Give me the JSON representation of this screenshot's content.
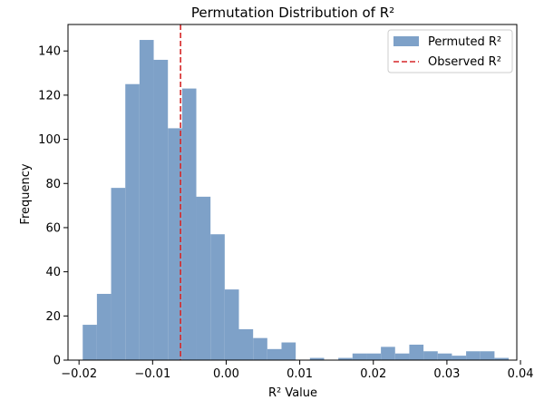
{
  "chart_data": {
    "type": "bar",
    "title": "Permutation Distribution of R²",
    "xlabel": "R² Value",
    "ylabel": "Frequency",
    "xlim": [
      -0.0215,
      0.0395
    ],
    "ylim": [
      0,
      152
    ],
    "x_ticks": [
      -0.02,
      -0.01,
      0.0,
      0.01,
      0.02,
      0.03,
      0.04
    ],
    "x_tick_labels": [
      "−0.02",
      "−0.01",
      "0.00",
      "0.01",
      "0.02",
      "0.03",
      "0.04"
    ],
    "y_ticks": [
      0,
      20,
      40,
      60,
      80,
      100,
      120,
      140
    ],
    "y_tick_labels": [
      "0",
      "20",
      "40",
      "60",
      "80",
      "100",
      "120",
      "140"
    ],
    "bin_start": -0.0195,
    "bin_width": 0.00193,
    "series": [
      {
        "name": "Permuted R²",
        "color": "#7ea1c8",
        "values": [
          16,
          30,
          78,
          125,
          145,
          136,
          105,
          123,
          74,
          57,
          32,
          14,
          10,
          5,
          8,
          0,
          1,
          0,
          1,
          3,
          3,
          6,
          3,
          7,
          4,
          3,
          2,
          4,
          4,
          1
        ]
      }
    ],
    "observed": {
      "name": "Observed R²",
      "value": -0.0062,
      "color": "#d62728"
    },
    "legend_position": "top-right",
    "grid": false
  }
}
